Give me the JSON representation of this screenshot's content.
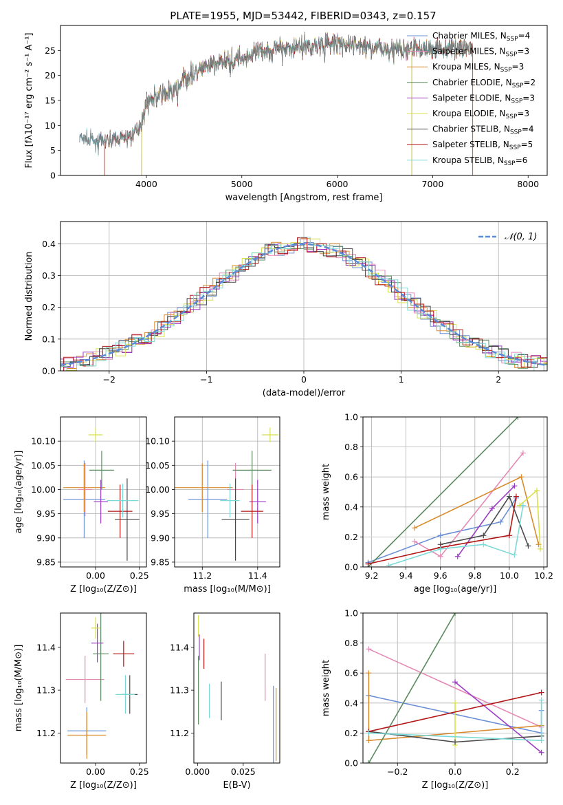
{
  "title": "PLATE=1955, MJD=53442, FIBERID=0343, z=0.157",
  "colors": {
    "Chabrier MILES": "#6b8fd6",
    "Salpeter MILES": "#e48ab5",
    "Kroupa MILES": "#d98a2b",
    "Chabrier ELODIE": "#5b8a5f",
    "Salpeter ELODIE": "#9c3bc4",
    "Kroupa ELODIE": "#d8e04a",
    "Chabrier STELIB": "#4a4a4a",
    "Salpeter STELIB": "#b31616",
    "Kroupa STELIB": "#7ad9d6",
    "normal_fit": "#5b8ad6"
  },
  "chart_data": [
    {
      "type": "line",
      "id": "spectrum",
      "title": "PLATE=1955, MJD=53442, FIBERID=0343, z=0.157",
      "xlabel": "wavelength [Angstrom, rest frame]",
      "ylabel": "Flux [fλ10⁻¹⁷ erg cm⁻² s⁻¹ A⁻¹]",
      "xlim": [
        3100,
        8200
      ],
      "ylim": [
        0,
        30
      ],
      "xticks": [
        "4000",
        "5000",
        "6000",
        "7000",
        "8000"
      ],
      "yticks": [
        "0",
        "5",
        "10",
        "15",
        "20",
        "25"
      ],
      "legend_position": "top-right",
      "series": [
        {
          "name": "Chabrier MILES, N$_{SSP}$=4",
          "label": "Chabrier MILES, N",
          "sub": "SSP",
          "n": "=4"
        },
        {
          "name": "Salpeter MILES, N$_{SSP}$=3",
          "label": "Salpeter MILES, N",
          "sub": "SSP",
          "n": "=3"
        },
        {
          "name": "Kroupa MILES, N$_{SSP}$=3",
          "label": "Kroupa MILES, N",
          "sub": "SSP",
          "n": "=3"
        },
        {
          "name": "Chabrier ELODIE, N$_{SSP}$=2",
          "label": "Chabrier ELODIE, N",
          "sub": "SSP",
          "n": "=2"
        },
        {
          "name": "Salpeter ELODIE, N$_{SSP}$=3",
          "label": "Salpeter ELODIE, N",
          "sub": "SSP",
          "n": "=3"
        },
        {
          "name": "Kroupa ELODIE, N$_{SSP}$=3",
          "label": "Kroupa ELODIE, N",
          "sub": "SSP",
          "n": "=3"
        },
        {
          "name": "Chabrier STELIB, N$_{SSP}$=4",
          "label": "Chabrier STELIB, N",
          "sub": "SSP",
          "n": "=4"
        },
        {
          "name": "Salpeter STELIB, N$_{SSP}$=5",
          "label": "Salpeter STELIB, N",
          "sub": "SSP",
          "n": "=5"
        },
        {
          "name": "Kroupa STELIB, N$_{SSP}$=6",
          "label": "Kroupa STELIB, N",
          "sub": "SSP",
          "n": "=6"
        }
      ],
      "continuum": {
        "x": [
          3300,
          3500,
          3700,
          3850,
          3950,
          4000,
          4100,
          4200,
          4300,
          4400,
          4600,
          4800,
          5000,
          5200,
          5400,
          5600,
          5800,
          6000,
          6200,
          6400,
          6600,
          6800,
          7000,
          7200,
          7400
        ],
        "y": [
          7.5,
          6.8,
          7.2,
          8.0,
          10.5,
          14.5,
          15.8,
          16.5,
          17.0,
          19.2,
          21.5,
          22.8,
          23.5,
          24.8,
          25.5,
          25.8,
          26.1,
          26.3,
          26.0,
          25.6,
          25.3,
          25.4,
          25.2,
          25.6,
          25.5
        ]
      },
      "model_ranges": [
        {
          "series": 0,
          "start": 3300,
          "end": 7400
        },
        {
          "series": 1,
          "start": 3560,
          "end": 6780
        },
        {
          "series": 2,
          "start": 3560,
          "end": 7420
        },
        {
          "series": 3,
          "start": 3950,
          "end": 6780
        },
        {
          "series": 4,
          "start": 3950,
          "end": 6780
        },
        {
          "series": 5,
          "start": 3950,
          "end": 6780
        },
        {
          "series": 6,
          "start": 3300,
          "end": 7400
        },
        {
          "series": 7,
          "start": 3560,
          "end": 7420
        },
        {
          "series": 8,
          "start": 3300,
          "end": 7400
        }
      ]
    },
    {
      "type": "line",
      "id": "residuals",
      "xlabel": "(data-model)/error",
      "ylabel": "Normed distribution",
      "xlim": [
        -2.5,
        2.5
      ],
      "ylim": [
        0,
        0.47
      ],
      "xticks": [
        "−2",
        "−1",
        "0",
        "1",
        "2"
      ],
      "yticks": [
        "0.0",
        "0.1",
        "0.2",
        "0.3",
        "0.4"
      ],
      "grid": true,
      "legend_position": "top-right",
      "legend": "𝒩(0, 1)",
      "gaussian": {
        "mean": 0,
        "sigma": 1
      }
    },
    {
      "type": "scatter",
      "id": "age-vs-Z",
      "xlabel": "Z [log₁₀(Z/Z⊙)]",
      "ylabel": "age  [log₁₀(age/yr)]",
      "xlim": [
        -0.2,
        0.29
      ],
      "ylim": [
        9.84,
        10.15
      ],
      "xticks": [
        "0.00",
        "0.25"
      ],
      "yticks": [
        "9.85",
        "9.90",
        "9.95",
        "10.00",
        "10.05",
        "10.10"
      ],
      "grid": true,
      "points": [
        {
          "series": 0,
          "x": -0.065,
          "y": 9.98,
          "xerr": 0.12,
          "yerr": 0.08
        },
        {
          "series": 1,
          "x": -0.06,
          "y": 10.0,
          "xerr": 0.04,
          "yerr": 0.055
        },
        {
          "series": 2,
          "x": -0.065,
          "y": 10.004,
          "xerr": 0.12,
          "yerr": 0.05
        },
        {
          "series": 3,
          "x": 0.035,
          "y": 10.04,
          "xerr": 0.07,
          "yerr": 0.04
        },
        {
          "series": 4,
          "x": 0.03,
          "y": 9.975,
          "xerr": 0.04,
          "yerr": 0.045
        },
        {
          "series": 5,
          "x": 0.0,
          "y": 10.113,
          "xerr": 0.04,
          "yerr": 0.015
        },
        {
          "series": 6,
          "x": 0.18,
          "y": 9.938,
          "xerr": 0.07,
          "yerr": 0.085
        },
        {
          "series": 7,
          "x": 0.14,
          "y": 9.955,
          "xerr": 0.07,
          "yerr": 0.055
        },
        {
          "series": 8,
          "x": 0.155,
          "y": 9.977,
          "xerr": 0.09,
          "yerr": 0.035
        }
      ]
    },
    {
      "type": "scatter",
      "id": "age-vs-mass",
      "xlabel": "mass [log₁₀(M/M⊙)]",
      "xlim": [
        11.1,
        11.48
      ],
      "ylim": [
        9.84,
        10.15
      ],
      "xticks": [
        "11.2",
        "11.4"
      ],
      "yticks": [
        "9.85",
        "9.90",
        "9.95",
        "10.00",
        "10.05",
        "10.10"
      ],
      "grid": true,
      "points": [
        {
          "series": 0,
          "x": 11.22,
          "y": 9.98,
          "xerr": 0.07,
          "yerr": 0.08
        },
        {
          "series": 1,
          "x": 11.32,
          "y": 10.0,
          "xerr": 0.03,
          "yerr": 0.055
        },
        {
          "series": 2,
          "x": 11.2,
          "y": 10.004,
          "xerr": 0.11,
          "yerr": 0.05
        },
        {
          "series": 3,
          "x": 11.38,
          "y": 10.04,
          "xerr": 0.07,
          "yerr": 0.04
        },
        {
          "series": 4,
          "x": 11.4,
          "y": 9.975,
          "xerr": 0.03,
          "yerr": 0.045
        },
        {
          "series": 5,
          "x": 11.445,
          "y": 10.113,
          "xerr": 0.03,
          "yerr": 0.015
        },
        {
          "series": 6,
          "x": 11.32,
          "y": 9.938,
          "xerr": 0.05,
          "yerr": 0.085
        },
        {
          "series": 7,
          "x": 11.38,
          "y": 9.955,
          "xerr": 0.04,
          "yerr": 0.055
        },
        {
          "series": 8,
          "x": 11.3,
          "y": 9.977,
          "xerr": 0.035,
          "yerr": 0.035
        }
      ]
    },
    {
      "type": "line",
      "id": "weight-vs-age",
      "xlabel": "age  [log₁₀(age/yr)]",
      "ylabel": "mass weight",
      "xlim": [
        9.15,
        10.22
      ],
      "ylim": [
        0,
        1.0
      ],
      "xticks": [
        "9.2",
        "9.4",
        "9.6",
        "9.8",
        "10.0",
        "10.2"
      ],
      "yticks": [
        "0.0",
        "0.2",
        "0.4",
        "0.6",
        "0.8",
        "1.0"
      ],
      "grid": true,
      "series": [
        {
          "series": 0,
          "x": [
            9.18,
            9.6,
            9.95,
            10.04
          ],
          "y": [
            0.03,
            0.21,
            0.3,
            0.46
          ]
        },
        {
          "series": 1,
          "x": [
            9.45,
            9.6,
            10.08
          ],
          "y": [
            0.17,
            0.07,
            0.76
          ]
        },
        {
          "series": 2,
          "x": [
            9.45,
            10.07,
            10.17
          ],
          "y": [
            0.26,
            0.6,
            0.15
          ]
        },
        {
          "series": 3,
          "x": [
            9.18,
            10.05
          ],
          "y": [
            0.0,
            1.0
          ]
        },
        {
          "series": 4,
          "x": [
            9.7,
            9.9,
            10.03
          ],
          "y": [
            0.07,
            0.39,
            0.54
          ]
        },
        {
          "series": 5,
          "x": [
            10.06,
            10.16,
            10.18
          ],
          "y": [
            0.41,
            0.51,
            0.12
          ]
        },
        {
          "series": 6,
          "x": [
            9.6,
            9.85,
            10.0,
            10.11
          ],
          "y": [
            0.15,
            0.21,
            0.47,
            0.14
          ]
        },
        {
          "series": 7,
          "x": [
            9.18,
            9.6,
            10.0,
            10.04
          ],
          "y": [
            0.02,
            0.13,
            0.21,
            0.47
          ]
        },
        {
          "series": 8,
          "x": [
            9.3,
            9.6,
            9.85,
            10.03,
            10.08
          ],
          "y": [
            0.01,
            0.12,
            0.15,
            0.08,
            0.41
          ]
        }
      ]
    },
    {
      "type": "scatter",
      "id": "mass-vs-Z",
      "xlabel": "Z [log₁₀(Z/Z⊙)]",
      "ylabel": "mass [log₁₀(M/M⊙)]",
      "xlim": [
        -0.2,
        0.29
      ],
      "ylim": [
        11.13,
        11.48
      ],
      "xticks": [
        "0.00",
        "0.25"
      ],
      "yticks": [
        "11.2",
        "11.3",
        "11.4"
      ],
      "points": [
        {
          "series": 0,
          "x": -0.05,
          "y": 11.205,
          "xerr": 0.11,
          "yerr": 0.055
        },
        {
          "series": 1,
          "x": -0.06,
          "y": 11.325,
          "xerr": 0.11,
          "yerr": 0.055
        },
        {
          "series": 2,
          "x": -0.05,
          "y": 11.195,
          "xerr": 0.11,
          "yerr": 0.055
        },
        {
          "series": 3,
          "x": 0.03,
          "y": 11.385,
          "xerr": 0.045,
          "yerr": 0.11
        },
        {
          "series": 4,
          "x": 0.01,
          "y": 11.41,
          "xerr": 0.035,
          "yerr": 0.045
        },
        {
          "series": 5,
          "x": 0.0,
          "y": 11.445,
          "xerr": 0.025,
          "yerr": 0.025
        },
        {
          "series": 6,
          "x": 0.195,
          "y": 11.29,
          "xerr": 0.045,
          "yerr": 0.045
        },
        {
          "series": 7,
          "x": 0.16,
          "y": 11.385,
          "xerr": 0.06,
          "yerr": 0.03
        },
        {
          "series": 8,
          "x": 0.17,
          "y": 11.29,
          "xerr": 0.055,
          "yerr": 0.045
        }
      ]
    },
    {
      "type": "scatter",
      "id": "mass-vs-ebv",
      "xlabel": "E(B-V)",
      "xlim": [
        -0.002,
        0.045
      ],
      "ylim": [
        11.13,
        11.48
      ],
      "xticks": [
        "0.000",
        "0.025"
      ],
      "yticks": [
        "11.2",
        "11.3",
        "11.4"
      ],
      "points": [
        {
          "series": 0,
          "x": 0.0415,
          "y": 11.22,
          "yerr": 0.09
        },
        {
          "series": 1,
          "x": 0.037,
          "y": 11.33,
          "yerr": 0.055
        },
        {
          "series": 2,
          "x": 0.043,
          "y": 11.22,
          "yerr": 0.085
        },
        {
          "series": 3,
          "x": 0.0005,
          "y": 11.3,
          "yerr": 0.08
        },
        {
          "series": 4,
          "x": 0.001,
          "y": 11.4,
          "yerr": 0.03
        },
        {
          "series": 5,
          "x": 0.0005,
          "y": 11.45,
          "yerr": 0.025
        },
        {
          "series": 6,
          "x": 0.013,
          "y": 11.275,
          "yerr": 0.045
        },
        {
          "series": 7,
          "x": 0.0035,
          "y": 11.385,
          "yerr": 0.035
        },
        {
          "series": 8,
          "x": 0.0065,
          "y": 11.275,
          "yerr": 0.04
        }
      ]
    },
    {
      "type": "line",
      "id": "weight-vs-Z",
      "xlabel": "Z [log₁₀(Z/Z⊙)]",
      "ylabel": "mass weight",
      "xlim": [
        -0.32,
        0.32
      ],
      "ylim": [
        0,
        1.0
      ],
      "xticks": [
        "−0.2",
        "0.0",
        "0.2"
      ],
      "yticks": [
        "0.0",
        "0.2",
        "0.4",
        "0.6",
        "0.8",
        "1.0"
      ],
      "grid": true,
      "series": [
        {
          "series": 0,
          "x": [
            -0.3,
            0.3,
            0.3
          ],
          "y": [
            0.45,
            0.2,
            0.35
          ]
        },
        {
          "series": 1,
          "x": [
            -0.3,
            0.3
          ],
          "y": [
            0.76,
            0.24
          ]
        },
        {
          "series": 2,
          "x": [
            -0.3,
            -0.3,
            0.3
          ],
          "y": [
            0.6,
            0.15,
            0.25
          ]
        },
        {
          "series": 3,
          "x": [
            -0.3,
            0.0
          ],
          "y": [
            0.0,
            1.0
          ]
        },
        {
          "series": 4,
          "x": [
            0.0,
            0.3
          ],
          "y": [
            0.54,
            0.07
          ]
        },
        {
          "series": 5,
          "x": [
            0.0,
            0.0
          ],
          "y": [
            0.4,
            0.12
          ]
        },
        {
          "series": 6,
          "x": [
            -0.3,
            0.0,
            0.3
          ],
          "y": [
            0.21,
            0.14,
            0.18
          ]
        },
        {
          "series": 7,
          "x": [
            -0.3,
            0.3
          ],
          "y": [
            0.21,
            0.47
          ]
        },
        {
          "series": 8,
          "x": [
            -0.3,
            0.3,
            0.3
          ],
          "y": [
            0.2,
            0.15,
            0.42
          ]
        }
      ]
    }
  ]
}
